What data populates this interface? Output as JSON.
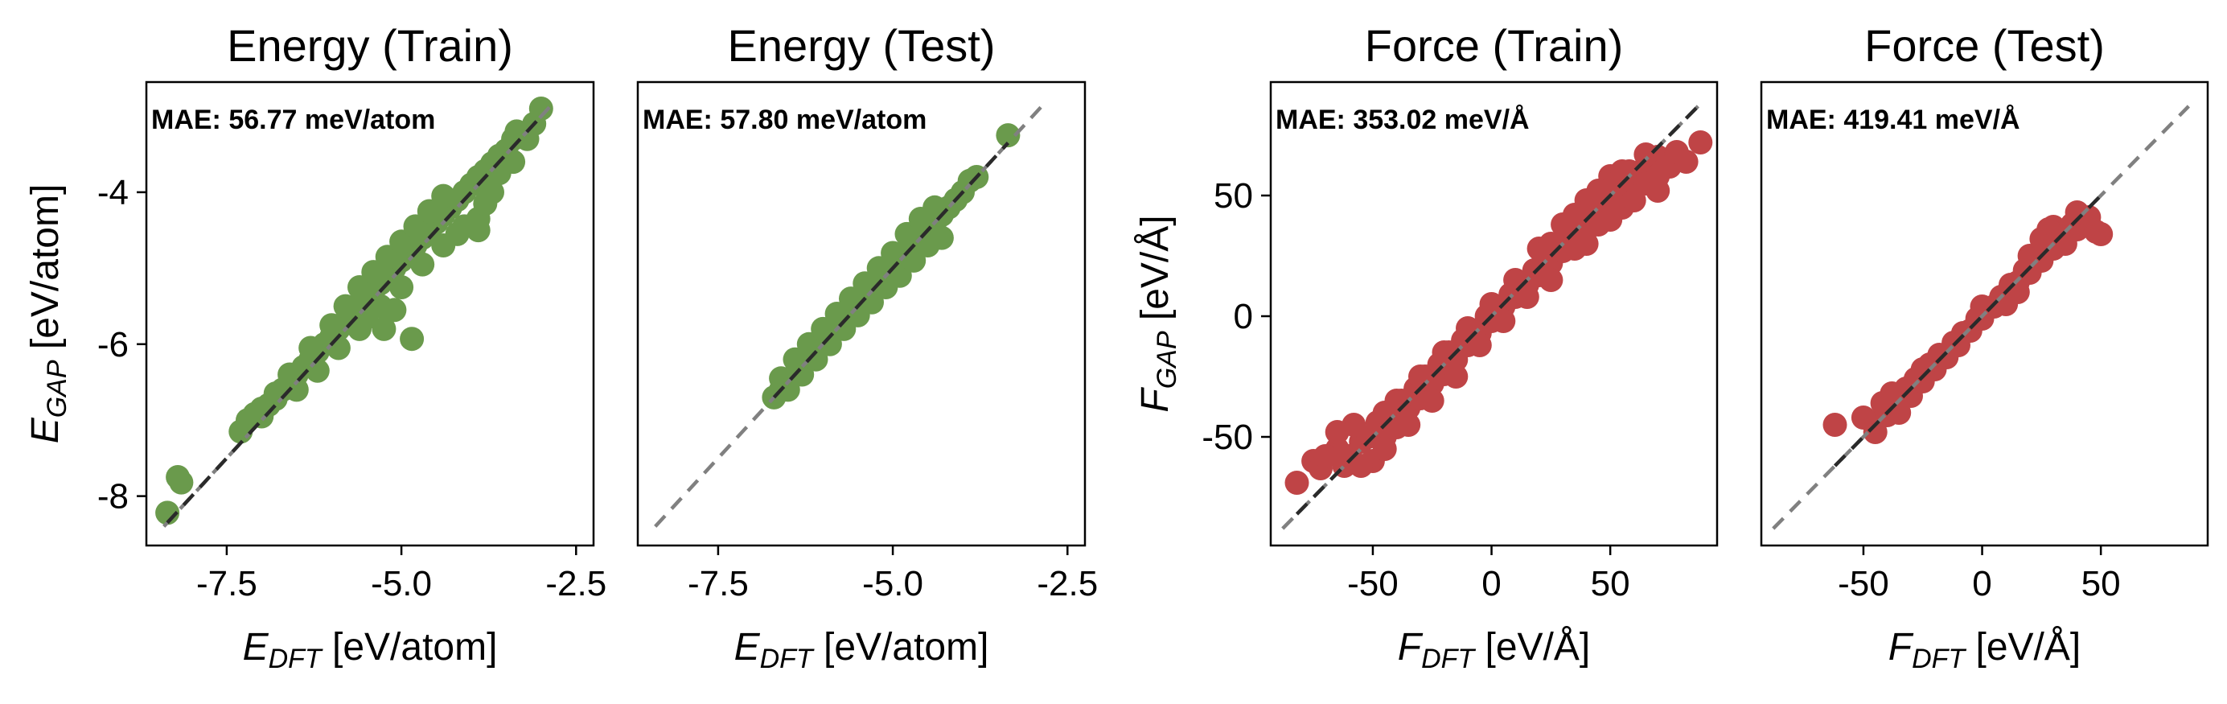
{
  "chart_data": [
    {
      "type": "scatter",
      "title": "Energy (Train)",
      "xlabel": {
        "main": "E",
        "sub": "DFT",
        "unit": " [eV/atom]"
      },
      "ylabel": {
        "main": "E",
        "sub": "GAP",
        "unit": " [eV/atom]"
      },
      "xlim": [
        -8.65,
        -2.25
      ],
      "ylim": [
        -8.65,
        -2.55
      ],
      "xticks": [
        -7.5,
        -5.0,
        -2.5
      ],
      "xtick_labels": [
        "-7.5",
        "-5.0",
        "-2.5"
      ],
      "yticks": [
        -4,
        -6,
        -8
      ],
      "ytick_labels": [
        "-4",
        "-6",
        "-8"
      ],
      "annotation": "MAE: 56.77 meV/atom",
      "diagonal": [
        -8.4,
        -2.8
      ],
      "color": "#6a9a4c",
      "points": [
        [
          -8.35,
          -8.22
        ],
        [
          -8.2,
          -7.75
        ],
        [
          -8.15,
          -7.82
        ],
        [
          -7.3,
          -7.15
        ],
        [
          -7.2,
          -7.0
        ],
        [
          -7.1,
          -6.92
        ],
        [
          -7.0,
          -6.85
        ],
        [
          -6.9,
          -6.8
        ],
        [
          -6.8,
          -6.72
        ],
        [
          -6.7,
          -6.6
        ],
        [
          -6.6,
          -6.5
        ],
        [
          -6.5,
          -6.4
        ],
        [
          -6.4,
          -6.3
        ],
        [
          -6.3,
          -6.2
        ],
        [
          -6.2,
          -6.1
        ],
        [
          -6.1,
          -6.0
        ],
        [
          -6.0,
          -5.9
        ],
        [
          -5.9,
          -5.8
        ],
        [
          -5.8,
          -5.7
        ],
        [
          -5.7,
          -5.6
        ],
        [
          -5.6,
          -5.5
        ],
        [
          -5.5,
          -5.4
        ],
        [
          -5.4,
          -5.3
        ],
        [
          -5.3,
          -5.2
        ],
        [
          -5.2,
          -5.1
        ],
        [
          -5.1,
          -5.0
        ],
        [
          -5.0,
          -4.9
        ],
        [
          -4.9,
          -4.8
        ],
        [
          -4.8,
          -4.7
        ],
        [
          -4.7,
          -4.6
        ],
        [
          -4.6,
          -4.5
        ],
        [
          -4.5,
          -4.4
        ],
        [
          -4.4,
          -4.3
        ],
        [
          -4.3,
          -4.2
        ],
        [
          -4.2,
          -4.1
        ],
        [
          -4.1,
          -4.0
        ],
        [
          -4.0,
          -3.9
        ],
        [
          -3.9,
          -3.8
        ],
        [
          -3.8,
          -3.72
        ],
        [
          -3.7,
          -3.62
        ],
        [
          -3.6,
          -3.52
        ],
        [
          -3.5,
          -3.45
        ],
        [
          -7.0,
          -6.95
        ],
        [
          -6.8,
          -6.65
        ],
        [
          -6.6,
          -6.4
        ],
        [
          -6.3,
          -6.05
        ],
        [
          -6.0,
          -5.75
        ],
        [
          -5.8,
          -5.5
        ],
        [
          -5.6,
          -5.25
        ],
        [
          -5.4,
          -5.05
        ],
        [
          -5.2,
          -4.85
        ],
        [
          -5.0,
          -4.65
        ],
        [
          -4.8,
          -4.45
        ],
        [
          -4.6,
          -4.25
        ],
        [
          -4.4,
          -4.05
        ],
        [
          -6.5,
          -6.6
        ],
        [
          -6.2,
          -6.35
        ],
        [
          -5.9,
          -6.05
        ],
        [
          -5.6,
          -5.8
        ],
        [
          -5.3,
          -5.5
        ],
        [
          -5.0,
          -5.25
        ],
        [
          -4.7,
          -4.95
        ],
        [
          -4.4,
          -4.7
        ],
        [
          -4.1,
          -4.45
        ],
        [
          -3.9,
          -4.35
        ],
        [
          -3.8,
          -4.15
        ],
        [
          -3.9,
          -4.5
        ],
        [
          -4.2,
          -4.55
        ],
        [
          -5.25,
          -5.8
        ],
        [
          -4.85,
          -5.93
        ],
        [
          -5.1,
          -5.55
        ],
        [
          -5.5,
          -5.65
        ],
        [
          -3.4,
          -3.3
        ],
        [
          -3.35,
          -3.2
        ],
        [
          -3.2,
          -3.3
        ],
        [
          -3.1,
          -3.1
        ],
        [
          -3.0,
          -2.9
        ],
        [
          -3.4,
          -3.6
        ],
        [
          -3.6,
          -3.75
        ],
        [
          -3.7,
          -4.0
        ]
      ]
    },
    {
      "type": "scatter",
      "title": "Energy (Test)",
      "xlabel": {
        "main": "E",
        "sub": "DFT",
        "unit": " [eV/atom]"
      },
      "ylabel": null,
      "xlim": [
        -8.65,
        -2.25
      ],
      "ylim": [
        -8.65,
        -2.55
      ],
      "xticks": [
        -7.5,
        -5.0,
        -2.5
      ],
      "xtick_labels": [
        "-7.5",
        "-5.0",
        "-2.5"
      ],
      "yticks": [],
      "ytick_labels": [],
      "annotation": "MAE: 57.80 meV/atom",
      "diagonal": [
        -8.4,
        -2.8
      ],
      "color": "#6a9a4c",
      "points": [
        [
          -6.7,
          -6.7
        ],
        [
          -6.6,
          -6.6
        ],
        [
          -6.5,
          -6.5
        ],
        [
          -6.4,
          -6.4
        ],
        [
          -6.3,
          -6.3
        ],
        [
          -6.2,
          -6.2
        ],
        [
          -6.1,
          -6.1
        ],
        [
          -6.0,
          -6.0
        ],
        [
          -5.9,
          -5.9
        ],
        [
          -5.8,
          -5.8
        ],
        [
          -5.7,
          -5.7
        ],
        [
          -5.6,
          -5.6
        ],
        [
          -5.5,
          -5.5
        ],
        [
          -5.4,
          -5.4
        ],
        [
          -5.3,
          -5.3
        ],
        [
          -5.2,
          -5.2
        ],
        [
          -5.1,
          -5.1
        ],
        [
          -5.0,
          -5.0
        ],
        [
          -4.9,
          -4.9
        ],
        [
          -4.8,
          -4.8
        ],
        [
          -4.7,
          -4.7
        ],
        [
          -4.6,
          -4.6
        ],
        [
          -4.5,
          -4.5
        ],
        [
          -4.4,
          -4.4
        ],
        [
          -4.3,
          -4.3
        ],
        [
          -4.2,
          -4.2
        ],
        [
          -4.1,
          -4.1
        ],
        [
          -6.6,
          -6.45
        ],
        [
          -6.4,
          -6.2
        ],
        [
          -6.2,
          -6.0
        ],
        [
          -6.0,
          -5.8
        ],
        [
          -5.8,
          -5.6
        ],
        [
          -5.6,
          -5.4
        ],
        [
          -5.4,
          -5.2
        ],
        [
          -5.2,
          -5.0
        ],
        [
          -5.0,
          -4.8
        ],
        [
          -4.8,
          -4.55
        ],
        [
          -4.6,
          -4.35
        ],
        [
          -4.4,
          -4.2
        ],
        [
          -6.5,
          -6.6
        ],
        [
          -6.3,
          -6.4
        ],
        [
          -6.1,
          -6.2
        ],
        [
          -5.9,
          -6.0
        ],
        [
          -5.7,
          -5.8
        ],
        [
          -5.5,
          -5.62
        ],
        [
          -5.3,
          -5.45
        ],
        [
          -5.1,
          -5.25
        ],
        [
          -4.9,
          -5.1
        ],
        [
          -4.7,
          -4.9
        ],
        [
          -4.5,
          -4.7
        ],
        [
          -4.3,
          -4.6
        ],
        [
          -4.0,
          -4.0
        ],
        [
          -3.9,
          -3.85
        ],
        [
          -3.8,
          -3.8
        ],
        [
          -3.35,
          -3.25
        ]
      ]
    },
    {
      "type": "scatter",
      "title": "Force (Train)",
      "xlabel": {
        "main": "F",
        "sub": "DFT",
        "unit": " [eV/Å]"
      },
      "ylabel": {
        "main": "F",
        "sub": "GAP",
        "unit": " [eV/Å]"
      },
      "xlim": [
        -93,
        95
      ],
      "ylim": [
        -95,
        97
      ],
      "xticks": [
        -50,
        0,
        50
      ],
      "xtick_labels": [
        "-50",
        "0",
        "50"
      ],
      "yticks": [
        50,
        0,
        -50
      ],
      "ytick_labels": [
        "50",
        "0",
        "-50"
      ],
      "annotation": "MAE: 353.02 meV/Å",
      "diagonal": [
        -88,
        87
      ],
      "color": "#bf4446",
      "points": [
        [
          -82,
          -69
        ],
        [
          -75,
          -60
        ],
        [
          -72,
          -63
        ],
        [
          -65,
          -55
        ],
        [
          -60,
          -58
        ],
        [
          -55,
          -52
        ],
        [
          -58,
          -45
        ],
        [
          -52,
          -50
        ],
        [
          -48,
          -44
        ],
        [
          -45,
          -50
        ],
        [
          -42,
          -40
        ],
        [
          -40,
          -46
        ],
        [
          -38,
          -35
        ],
        [
          -35,
          -38
        ],
        [
          -32,
          -30
        ],
        [
          -30,
          -34
        ],
        [
          -28,
          -25
        ],
        [
          -25,
          -28
        ],
        [
          -22,
          -20
        ],
        [
          -20,
          -24
        ],
        [
          -18,
          -15
        ],
        [
          -15,
          -18
        ],
        [
          -12,
          -10
        ],
        [
          -10,
          -12
        ],
        [
          -8,
          -6
        ],
        [
          -5,
          -7
        ],
        [
          -2,
          0
        ],
        [
          0,
          -2
        ],
        [
          2,
          3
        ],
        [
          5,
          4
        ],
        [
          8,
          9
        ],
        [
          10,
          8
        ],
        [
          12,
          14
        ],
        [
          15,
          13
        ],
        [
          18,
          19
        ],
        [
          20,
          17
        ],
        [
          22,
          24
        ],
        [
          25,
          22
        ],
        [
          28,
          30
        ],
        [
          30,
          27
        ],
        [
          32,
          35
        ],
        [
          35,
          32
        ],
        [
          38,
          40
        ],
        [
          40,
          36
        ],
        [
          42,
          44
        ],
        [
          45,
          41
        ],
        [
          48,
          50
        ],
        [
          50,
          46
        ],
        [
          52,
          55
        ],
        [
          55,
          50
        ],
        [
          58,
          60
        ],
        [
          60,
          55
        ],
        [
          62,
          58
        ],
        [
          65,
          62
        ],
        [
          68,
          60
        ],
        [
          70,
          66
        ],
        [
          72,
          63
        ],
        [
          75,
          62
        ],
        [
          78,
          68
        ],
        [
          82,
          64
        ],
        [
          88,
          72
        ],
        [
          -62,
          -62
        ],
        [
          -50,
          -60
        ],
        [
          -45,
          -40
        ],
        [
          -40,
          -35
        ],
        [
          -35,
          -45
        ],
        [
          -30,
          -25
        ],
        [
          -25,
          -35
        ],
        [
          -20,
          -15
        ],
        [
          -15,
          -25
        ],
        [
          -10,
          -5
        ],
        [
          -5,
          -12
        ],
        [
          0,
          5
        ],
        [
          5,
          -2
        ],
        [
          10,
          15
        ],
        [
          15,
          8
        ],
        [
          20,
          28
        ],
        [
          25,
          15
        ],
        [
          30,
          38
        ],
        [
          35,
          28
        ],
        [
          40,
          48
        ],
        [
          45,
          38
        ],
        [
          50,
          58
        ],
        [
          55,
          45
        ],
        [
          60,
          52
        ],
        [
          65,
          55
        ],
        [
          70,
          58
        ],
        [
          65,
          67
        ],
        [
          55,
          60
        ],
        [
          45,
          52
        ],
        [
          35,
          42
        ],
        [
          25,
          30
        ],
        [
          50,
          40
        ],
        [
          40,
          30
        ],
        [
          60,
          48
        ],
        [
          -70,
          -58
        ],
        [
          -55,
          -62
        ],
        [
          -65,
          -48
        ],
        [
          70,
          52
        ],
        [
          -45,
          -55
        ]
      ]
    },
    {
      "type": "scatter",
      "title": "Force (Test)",
      "xlabel": {
        "main": "F",
        "sub": "DFT",
        "unit": " [eV/Å]"
      },
      "ylabel": null,
      "xlim": [
        -93,
        95
      ],
      "ylim": [
        -95,
        97
      ],
      "xticks": [
        -50,
        0,
        50
      ],
      "xtick_labels": [
        "-50",
        "0",
        "50"
      ],
      "yticks": [],
      "ytick_labels": [],
      "annotation": "MAE: 419.41 meV/Å",
      "diagonal": [
        -88,
        87
      ],
      "color": "#bf4446",
      "points": [
        [
          -62,
          -45
        ],
        [
          -45,
          -44
        ],
        [
          -42,
          -36
        ],
        [
          -40,
          -41
        ],
        [
          -38,
          -32
        ],
        [
          -35,
          -35
        ],
        [
          -32,
          -30
        ],
        [
          -30,
          -33
        ],
        [
          -28,
          -26
        ],
        [
          -25,
          -27
        ],
        [
          -22,
          -20
        ],
        [
          -20,
          -22
        ],
        [
          -18,
          -16
        ],
        [
          -15,
          -17
        ],
        [
          -12,
          -11
        ],
        [
          -10,
          -12
        ],
        [
          -8,
          -7
        ],
        [
          -5,
          -6
        ],
        [
          -2,
          -1
        ],
        [
          0,
          -1
        ],
        [
          2,
          3
        ],
        [
          5,
          4
        ],
        [
          8,
          8
        ],
        [
          10,
          9
        ],
        [
          12,
          13
        ],
        [
          15,
          14
        ],
        [
          18,
          19
        ],
        [
          20,
          18
        ],
        [
          22,
          24
        ],
        [
          25,
          23
        ],
        [
          28,
          30
        ],
        [
          30,
          28
        ],
        [
          32,
          35
        ],
        [
          35,
          33
        ],
        [
          38,
          38
        ],
        [
          40,
          36
        ],
        [
          42,
          40
        ],
        [
          45,
          41
        ],
        [
          48,
          35
        ],
        [
          50,
          34
        ],
        [
          30,
          37
        ],
        [
          35,
          30
        ],
        [
          28,
          36
        ],
        [
          -45,
          -48
        ],
        [
          -35,
          -40
        ],
        [
          -25,
          -22
        ],
        [
          15,
          10
        ],
        [
          20,
          25
        ],
        [
          25,
          32
        ],
        [
          40,
          43
        ],
        [
          -50,
          -42
        ],
        [
          0,
          4
        ],
        [
          10,
          5
        ]
      ]
    }
  ]
}
